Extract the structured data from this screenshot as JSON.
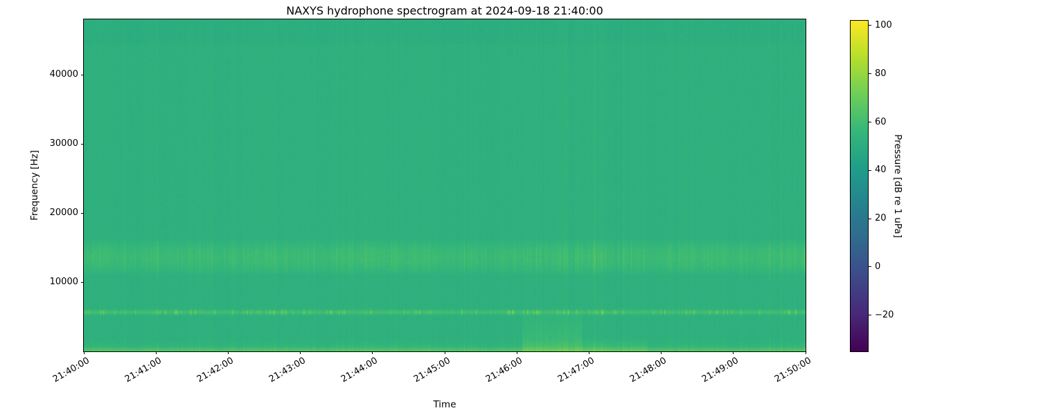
{
  "chart_data": {
    "type": "heatmap",
    "title": "NAXYS hydrophone spectrogram at 2024-09-18 21:40:00",
    "xlabel": "Time",
    "ylabel": "Frequency [Hz]",
    "x_tick_labels": [
      "21:40:00",
      "21:41:00",
      "21:42:00",
      "21:43:00",
      "21:44:00",
      "21:45:00",
      "21:46:00",
      "21:47:00",
      "21:48:00",
      "21:49:00",
      "21:50:00"
    ],
    "y_ticks": [
      10000,
      20000,
      30000,
      40000
    ],
    "ylim": [
      0,
      48000
    ],
    "grid": false,
    "colorbar": {
      "label": "Pressure [dB re 1 uPa]",
      "ticks": [
        100,
        80,
        60,
        40,
        20,
        0,
        -20
      ],
      "vmin": -35,
      "vmax": 102,
      "colormap": "viridis",
      "colormap_stops": [
        "#440154",
        "#482878",
        "#3e4989",
        "#31688e",
        "#26828e",
        "#1f9e89",
        "#35b779",
        "#6ece58",
        "#b5de2b",
        "#fde725"
      ]
    },
    "spectrogram_model": {
      "background_db": 52,
      "noise_db": 1.4,
      "top_shade": {
        "f_lo": 44500,
        "delta_db": -1.3
      },
      "mid_band": {
        "f_lo": 11500,
        "f_hi": 15800,
        "gain_db": 6
      },
      "tone_line": {
        "f_center": 5700,
        "half_width": 330,
        "gain_db": 8,
        "dot_gain_db": 14
      },
      "low_band": {
        "f_hi": 1800,
        "gain_db": 5
      },
      "floor_band": {
        "f_hi": 800,
        "gain_db": 9
      },
      "events": [
        {
          "t0": 0.607,
          "t1": 0.69,
          "f_hi": 6200,
          "gain_db": 7
        },
        {
          "t0": 0.69,
          "t1": 0.781,
          "f_hi": 2200,
          "gain_db": 4
        }
      ]
    }
  }
}
